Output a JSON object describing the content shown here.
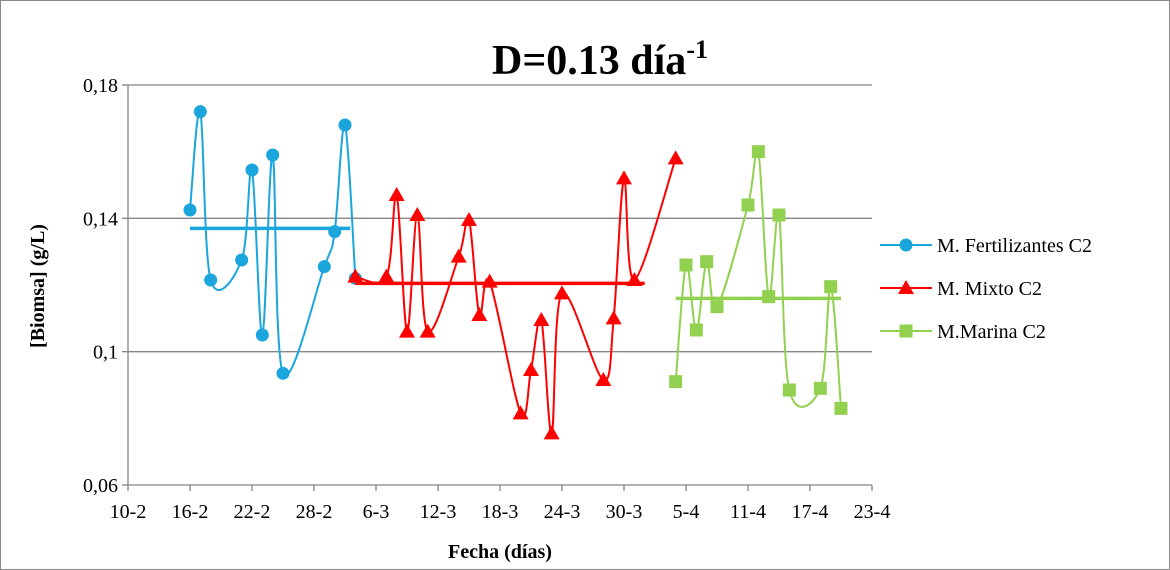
{
  "chart_data": {
    "type": "line",
    "title": "D=0.13 día",
    "title_superscript": "-1",
    "xlabel": "Fecha (días)",
    "ylabel": "[Biomsa] (g/L)",
    "ylim": [
      0.06,
      0.18
    ],
    "yticks": [
      "0,06",
      "0,1",
      "0,14",
      "0,18"
    ],
    "yticks_values": [
      0.06,
      0.1,
      0.14,
      0.18
    ],
    "xlim": [
      0,
      72
    ],
    "xticks": [
      "10-2",
      "16-2",
      "22-2",
      "28-2",
      "6-3",
      "12-3",
      "18-3",
      "24-3",
      "30-3",
      "5-4",
      "11-4",
      "17-4",
      "23-4"
    ],
    "xticks_values": [
      0,
      6,
      12,
      18,
      24,
      30,
      36,
      42,
      48,
      54,
      60,
      66,
      72
    ],
    "grid": "horizontal",
    "legend_position": "right",
    "series": [
      {
        "name": "M. Fertilizantes C2",
        "color": "#1aa6dd",
        "marker": "circle",
        "x": [
          6,
          7,
          8,
          11,
          12,
          13,
          14,
          15,
          19,
          20,
          21,
          22
        ],
        "y": [
          0.1425,
          0.172,
          0.1215,
          0.1275,
          0.1545,
          0.105,
          0.159,
          0.0935,
          0.1255,
          0.136,
          0.168,
          0.122
        ],
        "mean": 0.137,
        "mean_x": [
          6,
          21.5
        ]
      },
      {
        "name": "M. Mixto C2",
        "color": "#ff0000",
        "marker": "triangle",
        "x": [
          22,
          25,
          26,
          27,
          28,
          29,
          32,
          33,
          34,
          35,
          38,
          39,
          40,
          41,
          42,
          46,
          47,
          48,
          49,
          53
        ],
        "y": [
          0.1225,
          0.1225,
          0.147,
          0.106,
          0.141,
          0.106,
          0.1285,
          0.1395,
          0.111,
          0.121,
          0.0815,
          0.0945,
          0.1095,
          0.0755,
          0.1175,
          0.0915,
          0.11,
          0.152,
          0.1215,
          0.158
        ],
        "mean": 0.1205,
        "mean_x": [
          22,
          50
        ]
      },
      {
        "name": "M.Marina C2",
        "color": "#92d050",
        "marker": "square",
        "x": [
          53,
          54,
          55,
          56,
          57,
          60,
          61,
          62,
          63,
          64,
          67,
          68,
          69
        ],
        "y": [
          0.091,
          0.126,
          0.1065,
          0.127,
          0.1135,
          0.144,
          0.16,
          0.1165,
          0.141,
          0.0885,
          0.089,
          0.1195,
          0.083
        ],
        "mean": 0.116,
        "mean_x": [
          53,
          69
        ]
      }
    ]
  }
}
